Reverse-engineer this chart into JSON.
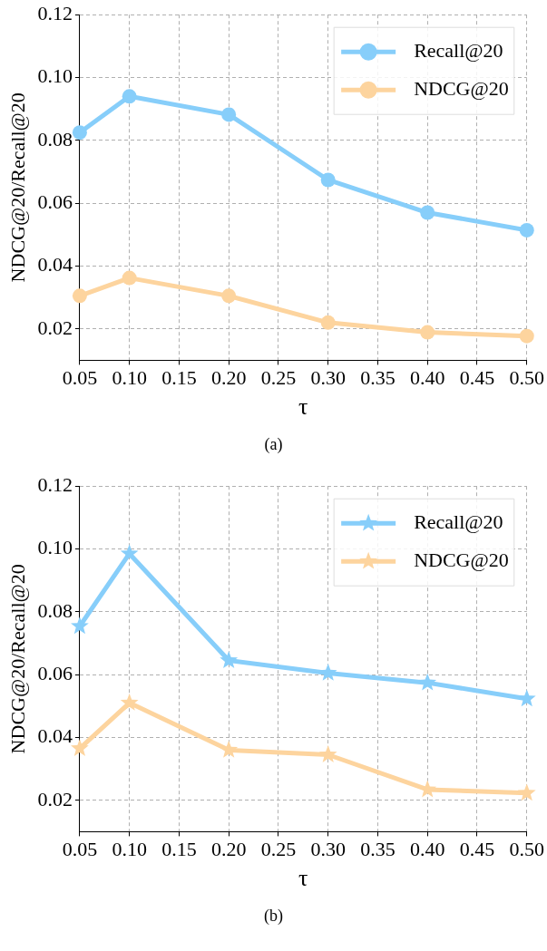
{
  "chart_data": [
    {
      "type": "line",
      "xlabel": "τ",
      "ylabel": "NDCG@20/Recall@20",
      "x": [
        0.05,
        0.1,
        0.2,
        0.3,
        0.4,
        0.5
      ],
      "series": [
        {
          "name": "Recall@20",
          "color": "#87cefa",
          "values": [
            0.0825,
            0.094,
            0.0882,
            0.0674,
            0.057,
            0.0514
          ]
        },
        {
          "name": "NDCG@20",
          "color": "#fdd49e",
          "values": [
            0.0305,
            0.0362,
            0.0305,
            0.022,
            0.0189,
            0.0177
          ]
        }
      ],
      "xlim": [
        0.05,
        0.5
      ],
      "xticks": [
        {
          "value": 0.05,
          "label": "0.05"
        },
        {
          "value": 0.1,
          "label": "0.10"
        },
        {
          "value": 0.15,
          "label": "0.15"
        },
        {
          "value": 0.2,
          "label": "0.20"
        },
        {
          "value": 0.25,
          "label": "0.25"
        },
        {
          "value": 0.3,
          "label": "0.30"
        },
        {
          "value": 0.35,
          "label": "0.35"
        },
        {
          "value": 0.4,
          "label": "0.40"
        },
        {
          "value": 0.45,
          "label": "0.45"
        },
        {
          "value": 0.5,
          "label": "0.50"
        }
      ],
      "ylim": [
        0.01,
        0.12
      ],
      "yticks": [
        {
          "value": 0.02,
          "label": "0.02"
        },
        {
          "value": 0.04,
          "label": "0.04"
        },
        {
          "value": 0.06,
          "label": "0.06"
        },
        {
          "value": 0.08,
          "label": "0.08"
        },
        {
          "value": 0.1,
          "label": "0.10"
        },
        {
          "value": 0.12,
          "label": "0.12"
        }
      ],
      "grid": true,
      "legend": "top right",
      "marker": "circle",
      "line_style": "solid",
      "annotations": [
        "(a)"
      ]
    },
    {
      "type": "line",
      "xlabel": "τ",
      "ylabel": "NDCG@20/Recall@20",
      "x": [
        0.05,
        0.1,
        0.2,
        0.3,
        0.4,
        0.5
      ],
      "series": [
        {
          "name": "Recall@20",
          "color": "#87cefa",
          "values": [
            0.0754,
            0.0985,
            0.0645,
            0.0605,
            0.0574,
            0.0523
          ]
        },
        {
          "name": "NDCG@20",
          "color": "#fdd49e",
          "values": [
            0.0365,
            0.051,
            0.036,
            0.0345,
            0.0234,
            0.0223
          ]
        }
      ],
      "xlim": [
        0.05,
        0.5
      ],
      "xticks": [
        {
          "value": 0.05,
          "label": "0.05"
        },
        {
          "value": 0.1,
          "label": "0.10"
        },
        {
          "value": 0.15,
          "label": "0.15"
        },
        {
          "value": 0.2,
          "label": "0.20"
        },
        {
          "value": 0.25,
          "label": "0.25"
        },
        {
          "value": 0.3,
          "label": "0.30"
        },
        {
          "value": 0.35,
          "label": "0.35"
        },
        {
          "value": 0.4,
          "label": "0.40"
        },
        {
          "value": 0.45,
          "label": "0.45"
        },
        {
          "value": 0.5,
          "label": "0.50"
        }
      ],
      "ylim": [
        0.01,
        0.12
      ],
      "yticks": [
        {
          "value": 0.02,
          "label": "0.02"
        },
        {
          "value": 0.04,
          "label": "0.04"
        },
        {
          "value": 0.06,
          "label": "0.06"
        },
        {
          "value": 0.08,
          "label": "0.08"
        },
        {
          "value": 0.1,
          "label": "0.10"
        },
        {
          "value": 0.12,
          "label": "0.12"
        }
      ],
      "grid": true,
      "legend": "top right",
      "marker": "star",
      "line_style": "solid",
      "annotations": [
        "(b)"
      ]
    }
  ]
}
